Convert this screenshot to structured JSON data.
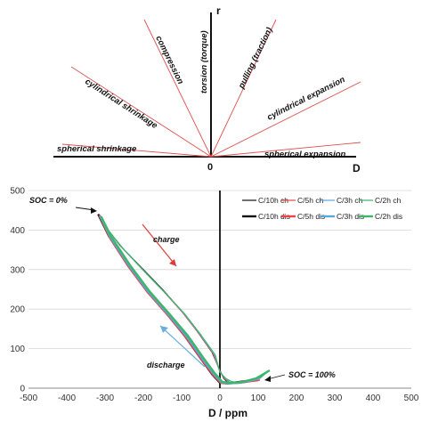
{
  "diagram": {
    "axis_vertical_label": "r",
    "axis_horizontal_label": "D",
    "origin_label": "0",
    "ray_labels": {
      "torsion": "torsion (torque)",
      "compression": "compression",
      "pulling": "pulling (traction)",
      "cyl_shrink": "cylindrical shrinkage",
      "cyl_expand": "cylindrical expansion",
      "sph_shrink": "spherical shrinkage",
      "sph_expand": "spherical expansion"
    }
  },
  "chart_data": {
    "type": "line",
    "xlabel": "D / ppm",
    "ylabel": "",
    "xlim": [
      -500,
      500
    ],
    "ylim": [
      0,
      500
    ],
    "xticks": [
      -500,
      -400,
      -300,
      -200,
      -100,
      0,
      100,
      200,
      300,
      400,
      500
    ],
    "yticks": [
      0,
      100,
      200,
      300,
      400,
      500
    ],
    "grid": "horizontal",
    "legend_placement": "top-right",
    "annotations": {
      "soc0": "SOC = 0%",
      "soc100": "SOC = 100%",
      "charge": "charge",
      "discharge": "discharge"
    },
    "colors": {
      "ch10": "#111111",
      "ch5": "#e8474a",
      "ch3": "#5aa7d8",
      "ch2": "#3db66a"
    },
    "series": [
      {
        "name": "C/10h ch",
        "color": "#111111",
        "width": 1.2,
        "x": [
          -318,
          -300,
          -260,
          -200,
          -150,
          -100,
          -60,
          -20,
          0,
          10,
          20,
          40,
          60,
          80,
          100
        ],
        "y": [
          440,
          410,
          360,
          300,
          250,
          195,
          145,
          90,
          45,
          25,
          15,
          12,
          14,
          18,
          22
        ]
      },
      {
        "name": "C/5h ch",
        "color": "#e8474a",
        "width": 1.2,
        "x": [
          -315,
          -298,
          -255,
          -198,
          -148,
          -98,
          -58,
          -18,
          0,
          12,
          25,
          45,
          65,
          85,
          105
        ],
        "y": [
          438,
          405,
          355,
          296,
          246,
          192,
          142,
          88,
          43,
          24,
          14,
          12,
          14,
          18,
          20
        ]
      },
      {
        "name": "C/3h ch",
        "color": "#5aa7d8",
        "width": 1.2,
        "x": [
          -313,
          -295,
          -252,
          -195,
          -145,
          -95,
          -55,
          -15,
          0,
          14,
          28,
          50,
          70,
          90,
          110
        ],
        "y": [
          436,
          402,
          352,
          293,
          243,
          190,
          140,
          86,
          42,
          24,
          14,
          12,
          15,
          20,
          28
        ]
      },
      {
        "name": "C/2h ch",
        "color": "#3db66a",
        "width": 1.2,
        "x": [
          -310,
          -292,
          -250,
          -192,
          -142,
          -92,
          -52,
          -12,
          0,
          16,
          32,
          55,
          80,
          105,
          130
        ],
        "y": [
          434,
          400,
          350,
          290,
          240,
          188,
          138,
          84,
          40,
          24,
          16,
          14,
          18,
          26,
          45
        ]
      },
      {
        "name": "C/10h dis",
        "color": "#111111",
        "width": 2.4,
        "x": [
          95,
          70,
          45,
          20,
          0,
          -20,
          -50,
          -90,
          -140,
          -190,
          -240,
          -290,
          -318
        ],
        "y": [
          22,
          18,
          15,
          12,
          14,
          35,
          75,
          130,
          190,
          245,
          310,
          385,
          440
        ]
      },
      {
        "name": "C/5h dis",
        "color": "#e8474a",
        "width": 2.4,
        "x": [
          100,
          72,
          48,
          22,
          2,
          -18,
          -48,
          -88,
          -138,
          -188,
          -238,
          -288,
          -315
        ],
        "y": [
          20,
          17,
          14,
          12,
          14,
          34,
          73,
          128,
          187,
          242,
          307,
          382,
          438
        ]
      },
      {
        "name": "C/3h dis",
        "color": "#5aa7d8",
        "width": 2.4,
        "x": [
          105,
          75,
          50,
          24,
          4,
          -16,
          -46,
          -86,
          -136,
          -186,
          -236,
          -286,
          -313
        ],
        "y": [
          25,
          18,
          14,
          12,
          15,
          36,
          75,
          130,
          188,
          243,
          308,
          382,
          436
        ]
      },
      {
        "name": "C/2h dis",
        "color": "#3db66a",
        "width": 2.4,
        "x": [
          130,
          95,
          60,
          28,
          6,
          -14,
          -44,
          -84,
          -134,
          -184,
          -234,
          -284,
          -310
        ],
        "y": [
          45,
          25,
          16,
          13,
          16,
          38,
          78,
          133,
          190,
          245,
          310,
          383,
          434
        ]
      }
    ]
  }
}
